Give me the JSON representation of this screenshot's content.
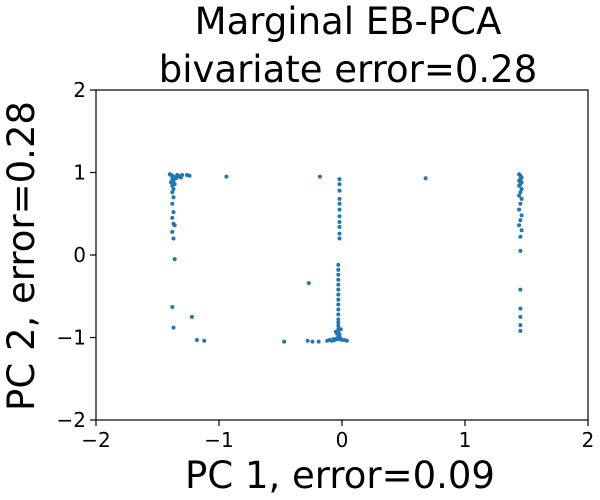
{
  "chart_data": {
    "type": "scatter",
    "title": "Marginal EB-PCA",
    "subtitle": "bivariate error=0.28",
    "xlabel": "PC 1, error=0.09",
    "ylabel": "PC 2, error=0.28",
    "xlim": [
      -2,
      2
    ],
    "ylim": [
      -2,
      2
    ],
    "xticks": [
      "−2",
      "−1",
      "0",
      "1",
      "2"
    ],
    "yticks": [
      "−2",
      "−1",
      "0",
      "1",
      "2"
    ],
    "xtick_values": [
      -2,
      -1,
      0,
      1,
      2
    ],
    "ytick_values": [
      -2,
      -1,
      0,
      1,
      2
    ],
    "grid": false,
    "marker_color": "#1f77b4",
    "points": [
      [
        -1.4,
        0.98
      ],
      [
        -1.39,
        0.97
      ],
      [
        -1.38,
        0.96
      ],
      [
        -1.37,
        0.95
      ],
      [
        -1.36,
        0.94
      ],
      [
        -1.35,
        0.93
      ],
      [
        -1.34,
        0.97
      ],
      [
        -1.33,
        0.96
      ],
      [
        -1.32,
        0.95
      ],
      [
        -1.31,
        0.94
      ],
      [
        -1.3,
        0.97
      ],
      [
        -1.38,
        0.92
      ],
      [
        -1.37,
        0.9
      ],
      [
        -1.39,
        0.88
      ],
      [
        -1.36,
        0.86
      ],
      [
        -1.38,
        0.84
      ],
      [
        -1.37,
        0.8
      ],
      [
        -1.38,
        0.76
      ],
      [
        -1.37,
        0.7
      ],
      [
        -1.38,
        0.62
      ],
      [
        -1.37,
        0.52
      ],
      [
        -1.38,
        0.45
      ],
      [
        -1.37,
        0.38
      ],
      [
        -1.36,
        0.36
      ],
      [
        -1.38,
        0.28
      ],
      [
        -1.37,
        0.2
      ],
      [
        -1.36,
        -0.05
      ],
      [
        -1.38,
        -0.63
      ],
      [
        -1.37,
        -0.88
      ],
      [
        -1.24,
        0.96
      ],
      [
        -1.26,
        0.97
      ],
      [
        -1.22,
        -0.75
      ],
      [
        -1.18,
        -1.03
      ],
      [
        -1.12,
        -1.04
      ],
      [
        -0.94,
        0.95
      ],
      [
        -0.47,
        -1.05
      ],
      [
        -0.28,
        -1.04
      ],
      [
        -0.24,
        -1.05
      ],
      [
        -0.27,
        -0.34
      ],
      [
        -0.19,
        -1.05
      ],
      [
        -0.18,
        0.95
      ],
      [
        -0.12,
        -1.04
      ],
      [
        -0.1,
        -1.03
      ],
      [
        -0.08,
        -1.04
      ],
      [
        -0.02,
        0.92
      ],
      [
        -0.02,
        0.86
      ],
      [
        -0.02,
        0.78
      ],
      [
        -0.02,
        0.68
      ],
      [
        -0.02,
        0.62
      ],
      [
        -0.02,
        0.55
      ],
      [
        -0.02,
        0.47
      ],
      [
        -0.02,
        0.4
      ],
      [
        -0.02,
        0.34
      ],
      [
        -0.02,
        0.26
      ],
      [
        -0.02,
        0.2
      ],
      [
        -0.03,
        -0.12
      ],
      [
        -0.03,
        -0.18
      ],
      [
        -0.03,
        -0.24
      ],
      [
        -0.03,
        -0.3
      ],
      [
        -0.03,
        -0.36
      ],
      [
        -0.03,
        -0.42
      ],
      [
        -0.03,
        -0.48
      ],
      [
        -0.03,
        -0.54
      ],
      [
        -0.03,
        -0.6
      ],
      [
        -0.03,
        -0.66
      ],
      [
        -0.03,
        -0.72
      ],
      [
        -0.03,
        -0.78
      ],
      [
        -0.03,
        -0.82
      ],
      [
        -0.03,
        -0.86
      ],
      [
        -0.03,
        -0.9
      ],
      [
        -0.03,
        -0.94
      ],
      [
        -0.03,
        -0.97
      ],
      [
        -0.03,
        -1.0
      ],
      [
        -0.03,
        -1.02
      ],
      [
        -0.02,
        -0.99
      ],
      [
        -0.04,
        -1.01
      ],
      [
        -0.05,
        -1.02
      ],
      [
        -0.06,
        -1.03
      ],
      [
        -0.01,
        -1.02
      ],
      [
        0.0,
        -1.03
      ],
      [
        0.02,
        -1.03
      ],
      [
        0.04,
        -1.04
      ],
      [
        -0.07,
        -1.02
      ],
      [
        -0.04,
        -0.95
      ],
      [
        -0.05,
        -0.93
      ],
      [
        -0.02,
        -0.96
      ],
      [
        -0.01,
        -0.9
      ],
      [
        0.68,
        0.93
      ],
      [
        1.44,
        0.98
      ],
      [
        1.45,
        0.96
      ],
      [
        1.46,
        0.94
      ],
      [
        1.45,
        0.92
      ],
      [
        1.44,
        0.9
      ],
      [
        1.46,
        0.88
      ],
      [
        1.45,
        0.86
      ],
      [
        1.44,
        0.84
      ],
      [
        1.46,
        0.8
      ],
      [
        1.45,
        0.76
      ],
      [
        1.44,
        0.72
      ],
      [
        1.46,
        0.68
      ],
      [
        1.45,
        0.62
      ],
      [
        1.44,
        0.55
      ],
      [
        1.46,
        0.48
      ],
      [
        1.45,
        0.42
      ],
      [
        1.44,
        0.36
      ],
      [
        1.46,
        0.3
      ],
      [
        1.45,
        0.22
      ],
      [
        1.45,
        0.05
      ],
      [
        1.45,
        -0.42
      ],
      [
        1.45,
        -0.65
      ],
      [
        1.45,
        -0.75
      ],
      [
        1.45,
        -0.85
      ],
      [
        1.45,
        -0.92
      ]
    ]
  }
}
